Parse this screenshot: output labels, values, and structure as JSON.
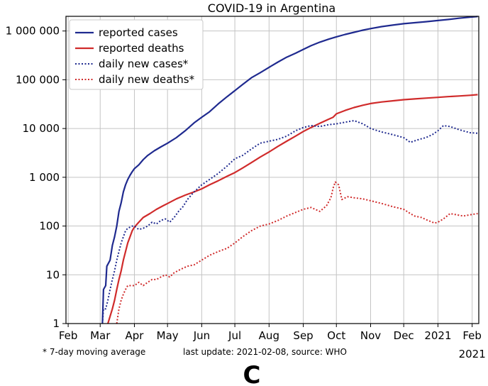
{
  "chart_data": {
    "type": "line",
    "title": "COVID-19 in Argentina",
    "yscale": "log",
    "ylim": [
      1,
      2000000
    ],
    "y_ticks": [
      {
        "value": 1,
        "label": "1"
      },
      {
        "value": 10,
        "label": "10"
      },
      {
        "value": 100,
        "label": "100"
      },
      {
        "value": 1000,
        "label": "1 000"
      },
      {
        "value": 10000,
        "label": "10 000"
      },
      {
        "value": 100000,
        "label": "100 000"
      },
      {
        "value": 1000000,
        "label": "1 000 000"
      }
    ],
    "x_unit": "days since 2020-01-01",
    "xlim": [
      30,
      404
    ],
    "x_ticks": [
      {
        "day": 32,
        "label": "Feb"
      },
      {
        "day": 61,
        "label": "Mar"
      },
      {
        "day": 92,
        "label": "Apr"
      },
      {
        "day": 122,
        "label": "May"
      },
      {
        "day": 153,
        "label": "Jun"
      },
      {
        "day": 183,
        "label": "Jul"
      },
      {
        "day": 214,
        "label": "Aug"
      },
      {
        "day": 245,
        "label": "Sep"
      },
      {
        "day": 275,
        "label": "Oct"
      },
      {
        "day": 306,
        "label": "Nov"
      },
      {
        "day": 336,
        "label": "Dec"
      },
      {
        "day": 367,
        "label": "2021"
      },
      {
        "day": 398,
        "label": "Feb"
      }
    ],
    "x_sublabel": "2021",
    "grid": true,
    "legend_position": "top-left",
    "series": [
      {
        "name": "reported cases",
        "color": "#1f2a8f",
        "style": "solid",
        "points": [
          [
            63,
            1
          ],
          [
            64,
            5
          ],
          [
            66,
            6
          ],
          [
            67,
            15
          ],
          [
            70,
            20
          ],
          [
            72,
            40
          ],
          [
            74,
            60
          ],
          [
            76,
            100
          ],
          [
            78,
            200
          ],
          [
            80,
            300
          ],
          [
            82,
            500
          ],
          [
            84,
            700
          ],
          [
            86,
            900
          ],
          [
            88,
            1100
          ],
          [
            90,
            1300
          ],
          [
            92,
            1500
          ],
          [
            96,
            1800
          ],
          [
            100,
            2300
          ],
          [
            104,
            2800
          ],
          [
            110,
            3500
          ],
          [
            116,
            4200
          ],
          [
            122,
            5000
          ],
          [
            130,
            6500
          ],
          [
            138,
            9000
          ],
          [
            146,
            13000
          ],
          [
            153,
            17000
          ],
          [
            160,
            22000
          ],
          [
            168,
            32000
          ],
          [
            176,
            45000
          ],
          [
            183,
            60000
          ],
          [
            190,
            80000
          ],
          [
            198,
            110000
          ],
          [
            206,
            140000
          ],
          [
            214,
            180000
          ],
          [
            222,
            230000
          ],
          [
            230,
            290000
          ],
          [
            238,
            350000
          ],
          [
            245,
            420000
          ],
          [
            252,
            500000
          ],
          [
            260,
            590000
          ],
          [
            268,
            680000
          ],
          [
            275,
            760000
          ],
          [
            283,
            850000
          ],
          [
            291,
            940000
          ],
          [
            299,
            1040000
          ],
          [
            306,
            1120000
          ],
          [
            316,
            1230000
          ],
          [
            326,
            1320000
          ],
          [
            336,
            1410000
          ],
          [
            346,
            1480000
          ],
          [
            356,
            1550000
          ],
          [
            367,
            1640000
          ],
          [
            376,
            1720000
          ],
          [
            386,
            1830000
          ],
          [
            396,
            1920000
          ],
          [
            403,
            1980000
          ]
        ]
      },
      {
        "name": "reported deaths",
        "color": "#d02b2b",
        "style": "solid",
        "points": [
          [
            68,
            1
          ],
          [
            72,
            2
          ],
          [
            74,
            3
          ],
          [
            76,
            5
          ],
          [
            78,
            8
          ],
          [
            80,
            12
          ],
          [
            82,
            20
          ],
          [
            84,
            30
          ],
          [
            86,
            45
          ],
          [
            88,
            60
          ],
          [
            90,
            80
          ],
          [
            92,
            95
          ],
          [
            96,
            120
          ],
          [
            100,
            150
          ],
          [
            106,
            180
          ],
          [
            112,
            220
          ],
          [
            118,
            260
          ],
          [
            122,
            290
          ],
          [
            130,
            360
          ],
          [
            138,
            430
          ],
          [
            146,
            500
          ],
          [
            153,
            580
          ],
          [
            160,
            700
          ],
          [
            168,
            850
          ],
          [
            176,
            1050
          ],
          [
            183,
            1250
          ],
          [
            190,
            1550
          ],
          [
            198,
            2000
          ],
          [
            206,
            2600
          ],
          [
            214,
            3300
          ],
          [
            222,
            4300
          ],
          [
            230,
            5500
          ],
          [
            238,
            7000
          ],
          [
            245,
            8700
          ],
          [
            252,
            10500
          ],
          [
            260,
            12800
          ],
          [
            268,
            15500
          ],
          [
            272,
            17000
          ],
          [
            275,
            20000
          ],
          [
            283,
            23500
          ],
          [
            291,
            27000
          ],
          [
            299,
            30000
          ],
          [
            306,
            32500
          ],
          [
            316,
            35000
          ],
          [
            326,
            37000
          ],
          [
            336,
            39000
          ],
          [
            346,
            40500
          ],
          [
            356,
            42000
          ],
          [
            367,
            43500
          ],
          [
            376,
            45000
          ],
          [
            386,
            46500
          ],
          [
            396,
            48000
          ],
          [
            403,
            49500
          ]
        ]
      },
      {
        "name": "daily new cases*",
        "color": "#1f2a8f",
        "style": "dotted",
        "points": [
          [
            63,
            1
          ],
          [
            64,
            2
          ],
          [
            66,
            2
          ],
          [
            68,
            3
          ],
          [
            70,
            5
          ],
          [
            72,
            8
          ],
          [
            74,
            12
          ],
          [
            76,
            20
          ],
          [
            78,
            30
          ],
          [
            80,
            45
          ],
          [
            82,
            60
          ],
          [
            84,
            80
          ],
          [
            86,
            90
          ],
          [
            88,
            95
          ],
          [
            90,
            100
          ],
          [
            92,
            100
          ],
          [
            96,
            85
          ],
          [
            100,
            90
          ],
          [
            104,
            100
          ],
          [
            108,
            120
          ],
          [
            112,
            110
          ],
          [
            116,
            130
          ],
          [
            120,
            140
          ],
          [
            124,
            120
          ],
          [
            128,
            150
          ],
          [
            132,
            200
          ],
          [
            136,
            250
          ],
          [
            140,
            350
          ],
          [
            146,
            500
          ],
          [
            153,
            700
          ],
          [
            160,
            900
          ],
          [
            168,
            1200
          ],
          [
            176,
            1700
          ],
          [
            183,
            2400
          ],
          [
            190,
            2800
          ],
          [
            198,
            3800
          ],
          [
            206,
            5000
          ],
          [
            214,
            5500
          ],
          [
            222,
            6000
          ],
          [
            230,
            7000
          ],
          [
            238,
            9000
          ],
          [
            245,
            10500
          ],
          [
            252,
            11500
          ],
          [
            260,
            11000
          ],
          [
            268,
            12000
          ],
          [
            275,
            12500
          ],
          [
            283,
            13500
          ],
          [
            291,
            14500
          ],
          [
            299,
            12500
          ],
          [
            306,
            10000
          ],
          [
            316,
            8500
          ],
          [
            326,
            7500
          ],
          [
            336,
            6500
          ],
          [
            342,
            5200
          ],
          [
            350,
            6000
          ],
          [
            356,
            6500
          ],
          [
            362,
            7500
          ],
          [
            367,
            9000
          ],
          [
            372,
            11500
          ],
          [
            378,
            11000
          ],
          [
            386,
            9500
          ],
          [
            396,
            8200
          ],
          [
            403,
            8000
          ]
        ]
      },
      {
        "name": "daily new deaths*",
        "color": "#d02b2b",
        "style": "dotted",
        "points": [
          [
            76,
            1
          ],
          [
            78,
            2
          ],
          [
            80,
            3
          ],
          [
            82,
            4
          ],
          [
            84,
            5
          ],
          [
            86,
            6
          ],
          [
            88,
            6
          ],
          [
            92,
            6
          ],
          [
            96,
            7
          ],
          [
            100,
            6
          ],
          [
            104,
            7
          ],
          [
            108,
            8
          ],
          [
            112,
            8
          ],
          [
            116,
            9
          ],
          [
            120,
            10
          ],
          [
            124,
            9
          ],
          [
            128,
            11
          ],
          [
            134,
            13
          ],
          [
            140,
            15
          ],
          [
            146,
            16
          ],
          [
            153,
            20
          ],
          [
            160,
            25
          ],
          [
            168,
            30
          ],
          [
            176,
            35
          ],
          [
            183,
            45
          ],
          [
            190,
            60
          ],
          [
            198,
            80
          ],
          [
            206,
            100
          ],
          [
            214,
            110
          ],
          [
            222,
            130
          ],
          [
            230,
            160
          ],
          [
            238,
            190
          ],
          [
            245,
            220
          ],
          [
            252,
            240
          ],
          [
            260,
            200
          ],
          [
            266,
            260
          ],
          [
            270,
            380
          ],
          [
            272,
            600
          ],
          [
            274,
            800
          ],
          [
            277,
            700
          ],
          [
            280,
            350
          ],
          [
            285,
            400
          ],
          [
            291,
            380
          ],
          [
            299,
            360
          ],
          [
            306,
            330
          ],
          [
            316,
            290
          ],
          [
            326,
            250
          ],
          [
            336,
            220
          ],
          [
            342,
            180
          ],
          [
            346,
            160
          ],
          [
            352,
            150
          ],
          [
            358,
            130
          ],
          [
            364,
            115
          ],
          [
            367,
            120
          ],
          [
            372,
            140
          ],
          [
            378,
            180
          ],
          [
            384,
            170
          ],
          [
            390,
            160
          ],
          [
            396,
            170
          ],
          [
            403,
            180
          ]
        ]
      }
    ],
    "footnote_left": "* 7-day moving average",
    "footnote_right": "last update: 2021-02-08, source: WHO",
    "panel_label": "C"
  }
}
